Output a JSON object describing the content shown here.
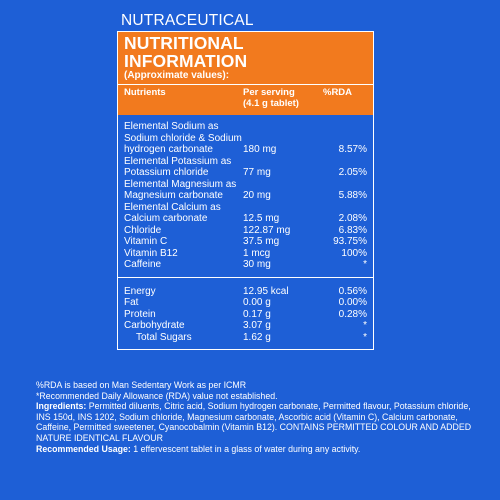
{
  "category": "NUTRACEUTICAL",
  "panel": {
    "title": "NUTRITIONAL INFORMATION",
    "subtitle": "(Approximate values):",
    "columns": {
      "nutrient": "Nutrients",
      "serving_line1": "Per serving",
      "serving_line2": "(4.1 g tablet)",
      "rda": "%RDA"
    },
    "group1": [
      {
        "name_lines": [
          "Elemental Sodium as",
          "Sodium chloride & Sodium",
          "hydrogen carbonate"
        ],
        "amount": "180 mg",
        "rda": "8.57%"
      },
      {
        "name_lines": [
          "Elemental Potassium as",
          "Potassium chloride"
        ],
        "amount": "77 mg",
        "rda": "2.05%"
      },
      {
        "name_lines": [
          "Elemental Magnesium as",
          "Magnesium carbonate"
        ],
        "amount": "20 mg",
        "rda": "5.88%"
      },
      {
        "name_lines": [
          "Elemental Calcium as",
          "Calcium carbonate"
        ],
        "amount": "12.5 mg",
        "rda": "2.08%"
      },
      {
        "name_lines": [
          "Chloride"
        ],
        "amount": "122.87 mg",
        "rda": "6.83%"
      },
      {
        "name_lines": [
          "Vitamin C"
        ],
        "amount": "37.5 mg",
        "rda": "93.75%"
      },
      {
        "name_lines": [
          "Vitamin B12"
        ],
        "amount": "1 mcg",
        "rda": "100%"
      },
      {
        "name_lines": [
          "Caffeine"
        ],
        "amount": "30 mg",
        "rda": "*"
      }
    ],
    "group2": [
      {
        "name": "Energy",
        "amount": "12.95 kcal",
        "rda": "0.56%",
        "indent": false
      },
      {
        "name": "Fat",
        "amount": "0.00 g",
        "rda": "0.00%",
        "indent": false
      },
      {
        "name": "Protein",
        "amount": "0.17 g",
        "rda": "0.28%",
        "indent": false
      },
      {
        "name": "Carbohydrate",
        "amount": "3.07 g",
        "rda": "*",
        "indent": false
      },
      {
        "name": "Total Sugars",
        "amount": "1.62 g",
        "rda": "*",
        "indent": true
      }
    ]
  },
  "notes": {
    "rda_basis": "%RDA is based on Man Sedentary Work as per ICMR",
    "rda_missing": "*Recommended Daily Allowance (RDA) value not established.",
    "ingredients_label": "Ingredients:",
    "ingredients_text": " Permitted diluents, Citric acid, Sodium hydrogen carbonate, Permitted flavour, Potassium chloride, INS 150d, INS 1202, Sodium chloride, Magnesium carbonate, Ascorbic acid (Vitamin C), Calcium carbonate, Caffeine, Permitted sweetener, Cyanocobalmin (Vitamin B12). CONTAINS PERMITTED COLOUR AND ADDED NATURE IDENTICAL FLAVOUR",
    "usage_label": "Recommended Usage:",
    "usage_text": " 1 effervescent tablet in a glass of water during any activity."
  }
}
